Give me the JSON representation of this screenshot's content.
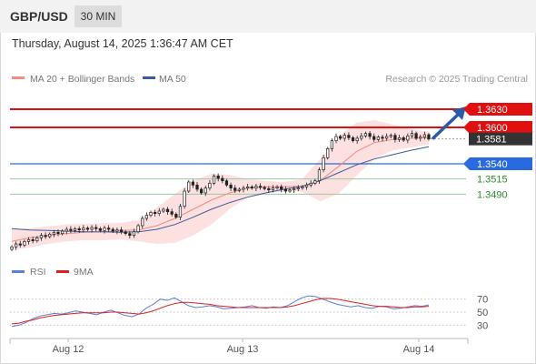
{
  "header": {
    "symbol": "GBP/USD",
    "timeframe": "30 MIN",
    "datetime": "Thursday, August 14, 2025 1:36:47 AM CET"
  },
  "legend": {
    "ma20_label": "MA 20 + Bollinger Bands",
    "ma20_color": "#f28b82",
    "ma50_label": "MA 50",
    "ma50_color": "#3a5a9a",
    "credit": "Research © 2025 Trading Central"
  },
  "rsi_legend": {
    "rsi_label": "RSI",
    "rsi_color": "#5b7fd6",
    "ma9_label": "9MA",
    "ma9_color": "#e02020"
  },
  "chart_data": [
    {
      "type": "candlestick",
      "title": "GBP/USD 30 MIN",
      "x_tick_labels": [
        "Aug 12",
        "Aug 13",
        "Aug 14"
      ],
      "ylim": [
        1.339,
        1.366
      ],
      "levels": [
        {
          "value": 1.363,
          "label": "1.3630",
          "color": "#e01010",
          "kind": "resistance"
        },
        {
          "value": 1.36,
          "label": "1.3600",
          "color": "#e01010",
          "kind": "resistance"
        },
        {
          "value": 1.3581,
          "label": "1.3581",
          "color": "#333333",
          "kind": "last-price"
        },
        {
          "value": 1.354,
          "label": "1.3540",
          "color": "#2a6ae0",
          "kind": "pivot"
        },
        {
          "value": 1.3515,
          "label": "1.3515",
          "color": "#2e8b2e",
          "kind": "support"
        },
        {
          "value": 1.349,
          "label": "1.3490",
          "color": "#2e8b2e",
          "kind": "support"
        }
      ],
      "candle_closes": [
        1.3403,
        1.3408,
        1.3406,
        1.3412,
        1.3415,
        1.3413,
        1.3418,
        1.3422,
        1.342,
        1.3424,
        1.3427,
        1.3425,
        1.3429,
        1.3432,
        1.343,
        1.3433,
        1.3431,
        1.3434,
        1.3432,
        1.3435,
        1.3433,
        1.343,
        1.3434,
        1.3432,
        1.3429,
        1.3431,
        1.3428,
        1.3425,
        1.3422,
        1.3428,
        1.3438,
        1.345,
        1.3455,
        1.346,
        1.3458,
        1.3462,
        1.3465,
        1.3461,
        1.3457,
        1.3452,
        1.347,
        1.3495,
        1.351,
        1.3505,
        1.3498,
        1.3492,
        1.35,
        1.3508,
        1.352,
        1.3516,
        1.3512,
        1.3505,
        1.35,
        1.3496,
        1.3498,
        1.35,
        1.3502,
        1.35,
        1.3503,
        1.3501,
        1.3499,
        1.3497,
        1.35,
        1.3502,
        1.3498,
        1.3495,
        1.3497,
        1.3499,
        1.35,
        1.3502,
        1.3505,
        1.3508,
        1.3512,
        1.353,
        1.355,
        1.3565,
        1.3578,
        1.3585,
        1.3582,
        1.3587,
        1.3583,
        1.3578,
        1.3582,
        1.3586,
        1.359,
        1.3585,
        1.358,
        1.3584,
        1.3582,
        1.3585,
        1.3587,
        1.358,
        1.3583,
        1.3579,
        1.3586,
        1.359,
        1.3582,
        1.3584,
        1.3588,
        1.3581
      ],
      "ma20_bollinger": {
        "mid": [
          1.3412,
          1.3418,
          1.3422,
          1.3425,
          1.3427,
          1.3428,
          1.343,
          1.3431,
          1.3438,
          1.345,
          1.3465,
          1.348,
          1.3492,
          1.35,
          1.3502,
          1.3502,
          1.3503,
          1.3512,
          1.3535,
          1.356,
          1.3575,
          1.358,
          1.3582,
          1.3583
        ],
        "upper": [
          1.3432,
          1.3434,
          1.3437,
          1.344,
          1.3441,
          1.3442,
          1.3443,
          1.3447,
          1.3468,
          1.349,
          1.3512,
          1.3524,
          1.3522,
          1.3515,
          1.3512,
          1.351,
          1.3514,
          1.3548,
          1.3585,
          1.3608,
          1.3612,
          1.3605,
          1.3597,
          1.3593
        ],
        "lower": [
          1.3398,
          1.3402,
          1.3408,
          1.3412,
          1.3414,
          1.3414,
          1.3415,
          1.3412,
          1.3408,
          1.341,
          1.3422,
          1.344,
          1.3465,
          1.3485,
          1.3492,
          1.3494,
          1.3494,
          1.3478,
          1.349,
          1.352,
          1.3548,
          1.3562,
          1.3567,
          1.3572
        ]
      },
      "ma50": [
        1.3433,
        1.3431,
        1.343,
        1.3429,
        1.3428,
        1.3428,
        1.3427,
        1.3428,
        1.3432,
        1.344,
        1.3452,
        1.3465,
        1.3476,
        1.3485,
        1.3492,
        1.3498,
        1.3503,
        1.3512,
        1.3525,
        1.3538,
        1.3548,
        1.3555,
        1.3562,
        1.3568
      ],
      "forecast_arrow": {
        "from": 1.3581,
        "to": 1.363
      }
    },
    {
      "type": "line",
      "title": "RSI",
      "ylim": [
        15,
        85
      ],
      "y_ticks": [
        {
          "value": 70,
          "label": "70"
        },
        {
          "value": 50,
          "label": "50"
        },
        {
          "value": 30,
          "label": "30"
        }
      ],
      "series": [
        {
          "name": "RSI",
          "color": "#5b7fd6",
          "values": [
            28,
            30,
            34,
            40,
            44,
            46,
            48,
            47,
            49,
            52,
            50,
            48,
            46,
            50,
            53,
            49,
            45,
            43,
            47,
            56,
            62,
            70,
            68,
            72,
            66,
            60,
            57,
            58,
            60,
            58,
            55,
            56,
            57,
            58,
            60,
            57,
            56,
            58,
            57,
            60,
            66,
            72,
            75,
            74,
            70,
            66,
            62,
            60,
            58,
            60,
            57,
            56,
            59,
            58,
            55,
            56,
            58,
            60,
            59,
            61
          ]
        },
        {
          "name": "9MA",
          "color": "#e02020",
          "values": [
            32,
            33,
            36,
            38,
            41,
            43,
            45,
            46,
            47,
            48,
            49,
            49,
            49,
            49,
            50,
            50,
            49,
            48,
            47,
            49,
            52,
            56,
            60,
            63,
            65,
            65,
            64,
            63,
            62,
            60,
            59,
            58,
            57,
            57,
            57,
            57,
            57,
            57,
            57,
            58,
            60,
            63,
            66,
            69,
            71,
            71,
            70,
            68,
            66,
            64,
            62,
            60,
            59,
            59,
            58,
            57,
            57,
            58,
            58,
            59
          ]
        }
      ]
    }
  ]
}
